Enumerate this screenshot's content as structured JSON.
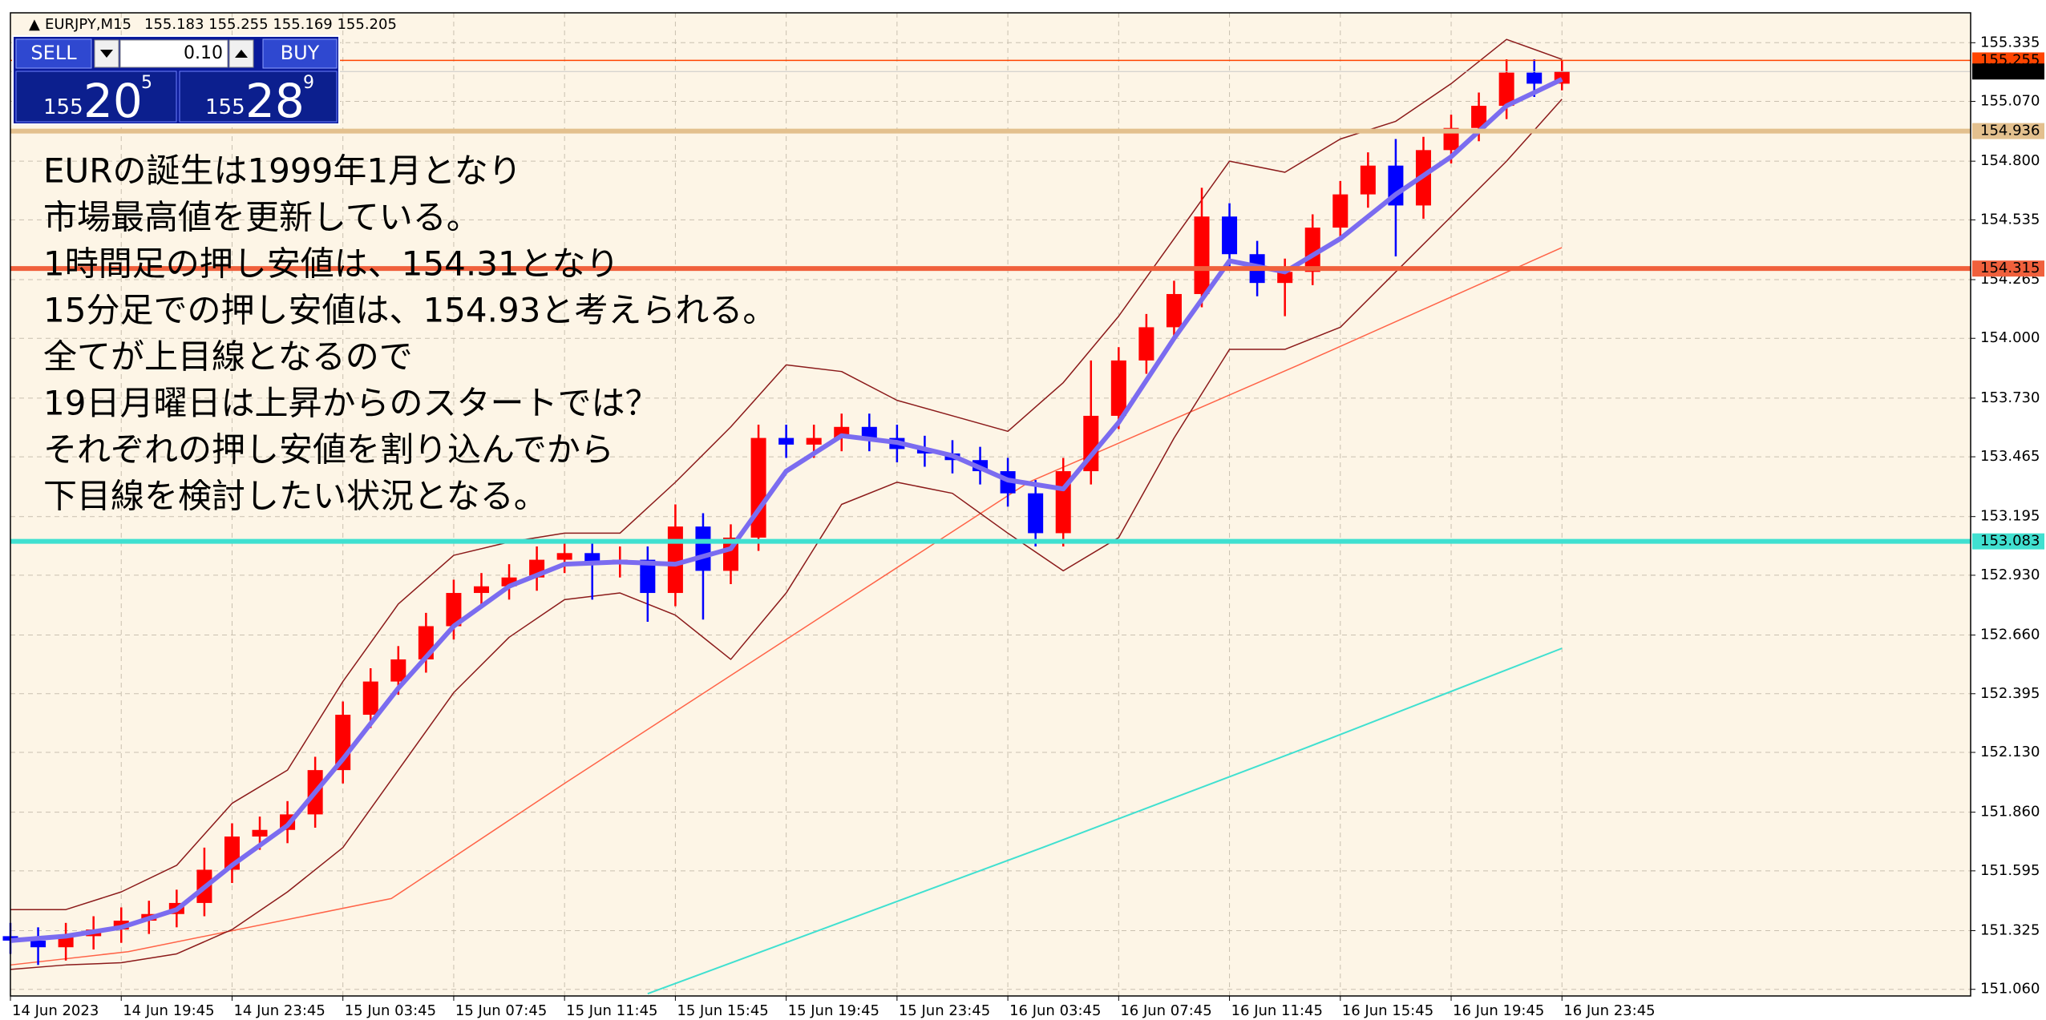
{
  "chart_data": {
    "type": "candlestick",
    "title": "EURJPY,M15",
    "quote": "155.183 155.255 155.169 155.205",
    "trade_panel": {
      "sell": "SELL",
      "lot": "0.10",
      "buy": "BUY",
      "bid": {
        "big": "155",
        "main": "20",
        "frac": "5"
      },
      "ask": {
        "big": "155",
        "main": "28",
        "frac": "9"
      }
    },
    "annotation": [
      "EURの誕生は1999年1月となり",
      "市場最高値を更新している。",
      "1時間足の押し安値は、154.31となり",
      "15分足での押し安値は、154.93と考えられる。",
      "全てが上目線となるので",
      "19日月曜日は上昇からのスタートでは？",
      "それぞれの押し安値を割り込んでから",
      "下目線を検討したい状況となる。"
    ],
    "up_color": "#ff0000",
    "down_color": "#0000ff",
    "x": [
      0,
      4,
      8,
      12,
      16,
      20,
      24,
      28,
      32,
      36,
      40,
      44,
      48,
      52,
      56,
      60,
      64,
      68,
      72,
      76,
      80,
      84,
      88,
      92,
      96,
      100,
      104,
      108,
      112,
      116,
      120,
      124,
      128,
      132,
      136,
      140,
      144,
      148,
      152,
      156,
      160,
      164,
      168,
      172,
      176,
      180,
      184,
      188,
      192,
      196,
      200,
      204,
      208,
      212,
      216,
      220,
      224
    ],
    "open": [
      151.3,
      151.28,
      151.25,
      151.3,
      151.33,
      151.37,
      151.4,
      151.45,
      151.6,
      151.75,
      151.78,
      151.85,
      152.05,
      152.3,
      152.45,
      152.55,
      152.7,
      152.85,
      152.88,
      152.92,
      153.0,
      153.03,
      152.98,
      153.0,
      152.85,
      153.15,
      152.95,
      153.1,
      153.55,
      153.52,
      153.55,
      153.6,
      153.55,
      153.5,
      153.48,
      153.45,
      153.4,
      153.3,
      153.12,
      153.4,
      153.65,
      153.9,
      154.05,
      154.2,
      154.55,
      154.38,
      154.25,
      154.3,
      154.5,
      154.65,
      154.78,
      154.6,
      154.85,
      154.95,
      155.05,
      155.2,
      155.15
    ],
    "high": [
      151.36,
      151.34,
      151.36,
      151.39,
      151.43,
      151.46,
      151.51,
      151.7,
      151.81,
      151.84,
      151.91,
      152.11,
      152.36,
      152.51,
      152.61,
      152.76,
      152.91,
      152.94,
      152.98,
      153.06,
      153.09,
      153.09,
      153.06,
      153.06,
      153.25,
      153.21,
      153.16,
      153.61,
      153.61,
      153.61,
      153.66,
      153.66,
      153.61,
      153.56,
      153.54,
      153.51,
      153.46,
      153.36,
      153.46,
      153.9,
      153.96,
      154.11,
      154.26,
      154.68,
      154.61,
      154.44,
      154.36,
      154.56,
      154.71,
      154.84,
      154.9,
      154.91,
      155.01,
      155.11,
      155.26,
      155.26,
      155.255
    ],
    "low": [
      151.22,
      151.17,
      151.19,
      151.24,
      151.27,
      151.31,
      151.34,
      151.39,
      151.54,
      151.69,
      151.72,
      151.79,
      151.99,
      152.24,
      152.39,
      152.49,
      152.64,
      152.79,
      152.82,
      152.86,
      152.94,
      152.82,
      152.92,
      152.72,
      152.79,
      152.73,
      152.89,
      153.04,
      153.46,
      153.46,
      153.49,
      153.49,
      153.44,
      153.42,
      153.39,
      153.34,
      153.24,
      153.06,
      153.06,
      153.34,
      153.59,
      153.84,
      153.99,
      154.14,
      154.32,
      154.19,
      154.1,
      154.24,
      154.44,
      154.59,
      154.37,
      154.54,
      154.79,
      154.89,
      154.99,
      155.09,
      155.12
    ],
    "close": [
      151.28,
      151.25,
      151.3,
      151.33,
      151.37,
      151.4,
      151.45,
      151.6,
      151.75,
      151.78,
      151.85,
      152.05,
      152.3,
      152.45,
      152.55,
      152.7,
      152.85,
      152.88,
      152.92,
      153.0,
      153.03,
      152.98,
      153.0,
      152.85,
      153.15,
      152.95,
      153.1,
      153.55,
      153.52,
      153.55,
      153.6,
      153.55,
      153.5,
      153.48,
      153.45,
      153.4,
      153.3,
      153.12,
      153.4,
      153.65,
      153.9,
      154.05,
      154.2,
      154.55,
      154.38,
      154.25,
      154.3,
      154.5,
      154.65,
      154.78,
      154.6,
      154.85,
      154.95,
      155.05,
      155.2,
      155.15,
      155.205
    ],
    "series": [
      {
        "color": "#40e0d0",
        "width": 2,
        "x": [
          92,
          149,
          187,
          224
        ],
        "values": [
          151.04,
          151.7,
          152.15,
          152.6
        ]
      },
      {
        "color": "#ff6347",
        "width": 1.5,
        "x": [
          0,
          17,
          55,
          80,
          112,
          147,
          186,
          224
        ],
        "values": [
          151.17,
          151.23,
          151.47,
          151.99,
          152.64,
          153.35,
          153.88,
          154.41
        ]
      },
      {
        "color": "#8b1a1a",
        "width": 1.5,
        "x": [
          0,
          8,
          16,
          24,
          32,
          40,
          48,
          56,
          64,
          72,
          80,
          88,
          96,
          104,
          112,
          120,
          128,
          136,
          144,
          152,
          160,
          168,
          176,
          184,
          192,
          200,
          208,
          216,
          224
        ],
        "values": [
          151.42,
          151.42,
          151.5,
          151.62,
          151.9,
          152.05,
          152.45,
          152.8,
          153.02,
          153.08,
          153.12,
          153.12,
          153.35,
          153.6,
          153.88,
          153.85,
          153.72,
          153.65,
          153.58,
          153.8,
          154.1,
          154.45,
          154.8,
          154.75,
          154.9,
          154.98,
          155.15,
          155.35,
          155.26
        ]
      },
      {
        "color": "#8b1a1a",
        "width": 1.5,
        "x": [
          0,
          8,
          16,
          24,
          32,
          40,
          48,
          56,
          64,
          72,
          80,
          88,
          96,
          104,
          112,
          120,
          128,
          136,
          144,
          152,
          160,
          168,
          176,
          184,
          192,
          200,
          208,
          216,
          224
        ],
        "values": [
          151.15,
          151.17,
          151.18,
          151.22,
          151.33,
          151.5,
          151.7,
          152.05,
          152.4,
          152.65,
          152.82,
          152.85,
          152.75,
          152.55,
          152.85,
          153.25,
          153.35,
          153.3,
          153.12,
          152.95,
          153.1,
          153.55,
          153.95,
          153.95,
          154.05,
          154.3,
          154.55,
          154.8,
          155.08
        ]
      },
      {
        "color": "#7b6cf0",
        "width": 6,
        "x": [
          0,
          8,
          16,
          24,
          32,
          40,
          48,
          56,
          64,
          72,
          80,
          88,
          96,
          104,
          112,
          120,
          128,
          136,
          144,
          152,
          160,
          168,
          176,
          184,
          192,
          200,
          208,
          216,
          224
        ],
        "values": [
          151.28,
          151.3,
          151.34,
          151.42,
          151.62,
          151.8,
          152.1,
          152.42,
          152.7,
          152.88,
          152.98,
          152.99,
          152.98,
          153.05,
          153.4,
          153.56,
          153.53,
          153.47,
          153.36,
          153.32,
          153.62,
          154.0,
          154.35,
          154.3,
          154.45,
          154.65,
          154.82,
          155.05,
          155.17
        ]
      }
    ],
    "levels": [
      {
        "value": 155.255,
        "color": "#ff4500",
        "width": 1.5,
        "label_color": "#ff4500"
      },
      {
        "value": 155.205,
        "color": "#c8c8c8",
        "width": 1,
        "label_color": "#000000"
      },
      {
        "value": 154.936,
        "color": "#e3c08e",
        "width": 6,
        "label_color": "#e3c08e"
      },
      {
        "value": 154.315,
        "color": "#f0603c",
        "width": 6,
        "label_color": "#f0603c"
      },
      {
        "value": 153.083,
        "color": "#40e0d0",
        "width": 6,
        "label_color": "#40e0d0"
      }
    ],
    "xlim": [
      0,
      283
    ],
    "ylim": [
      151.03,
      155.47
    ],
    "xticks": [
      {
        "value": 0,
        "label": "14 Jun 2023"
      },
      {
        "value": 16,
        "label": "14 Jun 19:45"
      },
      {
        "value": 32,
        "label": "14 Jun 23:45"
      },
      {
        "value": 48,
        "label": "15 Jun 03:45"
      },
      {
        "value": 64,
        "label": "15 Jun 07:45"
      },
      {
        "value": 80,
        "label": "15 Jun 11:45"
      },
      {
        "value": 96,
        "label": "15 Jun 15:45"
      },
      {
        "value": 112,
        "label": "15 Jun 19:45"
      },
      {
        "value": 128,
        "label": "15 Jun 23:45"
      },
      {
        "value": 144,
        "label": "16 Jun 03:45"
      },
      {
        "value": 160,
        "label": "16 Jun 07:45"
      },
      {
        "value": 176,
        "label": "16 Jun 11:45"
      },
      {
        "value": 192,
        "label": "16 Jun 15:45"
      },
      {
        "value": 208,
        "label": "16 Jun 19:45"
      },
      {
        "value": 224,
        "label": "16 Jun 23:45"
      }
    ],
    "yticks": [
      155.335,
      {
        "value": 155.07,
        "label": "155.070"
      },
      {
        "value": 154.8,
        "label": "154.800"
      },
      154.535,
      154.265,
      {
        "value": 154,
        "label": "154.000"
      },
      {
        "value": 153.73,
        "label": "153.730"
      },
      153.465,
      153.195,
      {
        "value": 152.93,
        "label": "152.930"
      },
      {
        "value": 152.66,
        "label": "152.660"
      },
      152.395,
      {
        "value": 152.13,
        "label": "152.130"
      },
      {
        "value": 151.86,
        "label": "151.860"
      },
      151.595,
      151.325,
      {
        "value": 151.06,
        "label": "151.060"
      }
    ],
    "grid": true
  }
}
